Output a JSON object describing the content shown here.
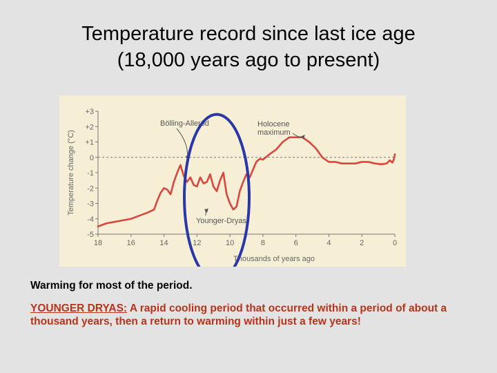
{
  "slide": {
    "title_line1": "Temperature record since last ice age",
    "title_line2": "(18,000 years ago to present)",
    "caption1": "Warming for most of the period.",
    "caption2_label": "YOUNGER DRYAS:",
    "caption2_text": " A rapid cooling period that occurred within a period of about a thousand years, then a return to warming within just a few years!"
  },
  "colors": {
    "background": "#e3e3e3",
    "plot_bg": "#f6efd6",
    "curve": "#d9463c",
    "highlight_ellipse": "#2a37a6",
    "annotation": "#555555"
  },
  "chart_data": {
    "type": "line",
    "xlabel": "Thousands of years ago",
    "ylabel": "Temperature change (°C)",
    "xlim": [
      18,
      0
    ],
    "ylim": [
      -5,
      3
    ],
    "x_ticks": [
      "18",
      "16",
      "14",
      "12",
      "10",
      "8",
      "6",
      "4",
      "2",
      "0"
    ],
    "y_ticks": [
      "+3",
      "+2",
      "+1",
      "0",
      "-1",
      "-2",
      "-3",
      "-4",
      "-5"
    ],
    "x_tick_values": [
      18,
      16,
      14,
      12,
      10,
      8,
      6,
      4,
      2,
      0
    ],
    "y_tick_values": [
      3,
      2,
      1,
      0,
      -1,
      -2,
      -3,
      -4,
      -5
    ],
    "series": [
      {
        "x": [
          18,
          17.5,
          17,
          16.5,
          16,
          15.5,
          15,
          14.6,
          14.4,
          14.2,
          14.0,
          13.8,
          13.6,
          13.4,
          13.2,
          13.0,
          12.8,
          12.6,
          12.4,
          12.2,
          12.0,
          11.8,
          11.6,
          11.4,
          11.2,
          11.0,
          10.8,
          10.6,
          10.4,
          10.2,
          10.0,
          9.8,
          9.6,
          9.4,
          9.2,
          9.0,
          8.8,
          8.6,
          8.4,
          8.2,
          8.0,
          7.6,
          7.2,
          6.8,
          6.4,
          6.0,
          5.6,
          5.2,
          4.8,
          4.4,
          4.0,
          3.6,
          3.2,
          2.8,
          2.4,
          2.0,
          1.6,
          1.2,
          0.8,
          0.5,
          0.3,
          0.15,
          0.05,
          0.0
        ],
        "y": [
          -4.5,
          -4.3,
          -4.2,
          -4.1,
          -4.0,
          -3.8,
          -3.6,
          -3.4,
          -2.8,
          -2.3,
          -2.0,
          -2.1,
          -2.4,
          -1.6,
          -1.0,
          -0.5,
          -1.2,
          -1.6,
          -1.3,
          -1.8,
          -1.9,
          -1.3,
          -1.7,
          -1.6,
          -1.1,
          -1.9,
          -2.2,
          -1.5,
          -1.0,
          -2.4,
          -3.0,
          -3.4,
          -3.2,
          -2.2,
          -1.6,
          -1.1,
          -1.3,
          -0.8,
          -0.3,
          -0.1,
          -0.15,
          0.2,
          0.5,
          1.0,
          1.3,
          1.3,
          1.3,
          1.0,
          0.6,
          0.0,
          -0.3,
          -0.3,
          -0.4,
          -0.4,
          -0.4,
          -0.3,
          -0.3,
          -0.4,
          -0.45,
          -0.4,
          -0.2,
          -0.35,
          -0.1,
          0.2
        ]
      }
    ],
    "reference_line": 0,
    "annotations": [
      {
        "text": "Bölling-Alleröd",
        "x": 12.5,
        "y": -0.3
      },
      {
        "text": "Holocene\nmaximum",
        "x": 5.4,
        "y": 1.3
      },
      {
        "text": "Younger-Dryas",
        "x": 11.4,
        "y": -3.4
      }
    ],
    "highlight": {
      "x_center": 10.8,
      "y_center": -2.6
    },
    "grid": false
  }
}
